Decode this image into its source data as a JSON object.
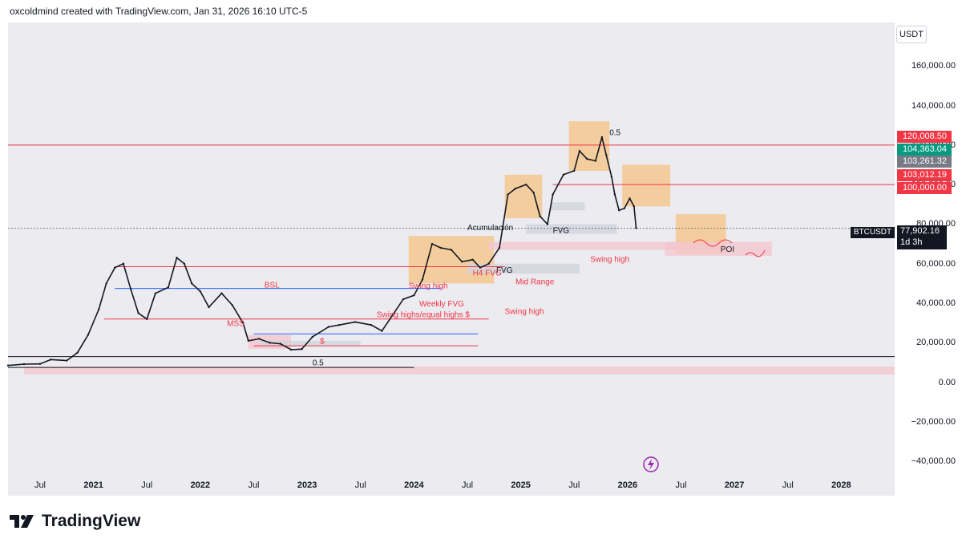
{
  "header": {
    "credit": "oxcoldmind created with TradingView.com, Jan 31, 2026 16:10 UTC-5"
  },
  "footer": {
    "brand": "TradingView"
  },
  "symbol": {
    "name": "BTCUSDT",
    "last_price": "77,902.16",
    "countdown": "1d 3h",
    "currency": "USDT"
  },
  "price_tags": [
    {
      "label": "120,008.50",
      "color": "#f23645"
    },
    {
      "label": "104,363.04",
      "color": "#089981"
    },
    {
      "label": "103,261.32",
      "color": "#787b86"
    },
    {
      "label": "103,012.19",
      "color": "#f23645"
    },
    {
      "label": "100,000.00",
      "color": "#f23645"
    }
  ],
  "chart_data": {
    "type": "line",
    "title": "BTCUSDT 1D",
    "ylim": [
      -48000,
      182000
    ],
    "xlim": [
      2020.2,
      2028.5
    ],
    "y_ticks": [
      160000,
      140000,
      120000,
      100000,
      80000,
      60000,
      40000,
      20000,
      0,
      -20000,
      -40000
    ],
    "y_tick_labels": [
      "160,000.00",
      "140,000.00",
      "120,000.00",
      "100,000.00",
      "80,000.00",
      "60,000.00",
      "40,000.00",
      "20,000.00",
      "0.00",
      "−20,000.00",
      "−40,000.00"
    ],
    "x_ticks": [
      {
        "label": "Jul",
        "t": 2020.5,
        "year": false
      },
      {
        "label": "2021",
        "t": 2021.0,
        "year": true
      },
      {
        "label": "Jul",
        "t": 2021.5,
        "year": false
      },
      {
        "label": "2022",
        "t": 2022.0,
        "year": true
      },
      {
        "label": "Jul",
        "t": 2022.5,
        "year": false
      },
      {
        "label": "2023",
        "t": 2023.0,
        "year": true
      },
      {
        "label": "Jul",
        "t": 2023.5,
        "year": false
      },
      {
        "label": "2024",
        "t": 2024.0,
        "year": true
      },
      {
        "label": "Jul",
        "t": 2024.5,
        "year": false
      },
      {
        "label": "2025",
        "t": 2025.0,
        "year": true
      },
      {
        "label": "Jul",
        "t": 2025.5,
        "year": false
      },
      {
        "label": "2026",
        "t": 2026.0,
        "year": true
      },
      {
        "label": "Jul",
        "t": 2026.5,
        "year": false
      },
      {
        "label": "2027",
        "t": 2027.0,
        "year": true
      },
      {
        "label": "Jul",
        "t": 2027.5,
        "year": false
      },
      {
        "label": "2028",
        "t": 2028.0,
        "year": true
      }
    ],
    "series": [
      {
        "name": "BTCUSDT price",
        "color": "#131722",
        "points": [
          [
            2020.2,
            8500
          ],
          [
            2020.35,
            9200
          ],
          [
            2020.5,
            9300
          ],
          [
            2020.6,
            11500
          ],
          [
            2020.75,
            11000
          ],
          [
            2020.85,
            15000
          ],
          [
            2020.95,
            24000
          ],
          [
            2021.05,
            37000
          ],
          [
            2021.12,
            50000
          ],
          [
            2021.2,
            58000
          ],
          [
            2021.28,
            60000
          ],
          [
            2021.35,
            47000
          ],
          [
            2021.42,
            35000
          ],
          [
            2021.5,
            32000
          ],
          [
            2021.58,
            45000
          ],
          [
            2021.7,
            48000
          ],
          [
            2021.78,
            63000
          ],
          [
            2021.85,
            60000
          ],
          [
            2021.92,
            50000
          ],
          [
            2022.0,
            46000
          ],
          [
            2022.08,
            38000
          ],
          [
            2022.2,
            45000
          ],
          [
            2022.3,
            39000
          ],
          [
            2022.4,
            30000
          ],
          [
            2022.45,
            21000
          ],
          [
            2022.55,
            22000
          ],
          [
            2022.65,
            20000
          ],
          [
            2022.75,
            19500
          ],
          [
            2022.85,
            16500
          ],
          [
            2022.95,
            16800
          ],
          [
            2023.05,
            23000
          ],
          [
            2023.2,
            28000
          ],
          [
            2023.3,
            29000
          ],
          [
            2023.45,
            30500
          ],
          [
            2023.6,
            29000
          ],
          [
            2023.7,
            26000
          ],
          [
            2023.8,
            34000
          ],
          [
            2023.9,
            42000
          ],
          [
            2024.0,
            44000
          ],
          [
            2024.08,
            52000
          ],
          [
            2024.17,
            70000
          ],
          [
            2024.25,
            68000
          ],
          [
            2024.35,
            67000
          ],
          [
            2024.45,
            61000
          ],
          [
            2024.55,
            62000
          ],
          [
            2024.62,
            58000
          ],
          [
            2024.7,
            60000
          ],
          [
            2024.8,
            68000
          ],
          [
            2024.88,
            95000
          ],
          [
            2024.95,
            98000
          ],
          [
            2025.05,
            100000
          ],
          [
            2025.12,
            96000
          ],
          [
            2025.18,
            84000
          ],
          [
            2025.25,
            80000
          ],
          [
            2025.3,
            95000
          ],
          [
            2025.4,
            105000
          ],
          [
            2025.5,
            107000
          ],
          [
            2025.55,
            117000
          ],
          [
            2025.62,
            113000
          ],
          [
            2025.7,
            112000
          ],
          [
            2025.76,
            124000
          ],
          [
            2025.8,
            115000
          ],
          [
            2025.85,
            104000
          ],
          [
            2025.88,
            95000
          ],
          [
            2025.92,
            87000
          ],
          [
            2025.97,
            88000
          ],
          [
            2026.02,
            93000
          ],
          [
            2026.06,
            89000
          ],
          [
            2026.08,
            78000
          ]
        ]
      }
    ],
    "horizontal_levels": [
      {
        "value": 120008.5,
        "color": "#f23645",
        "from": 2020.2,
        "to": 2028.5
      },
      {
        "value": 100000,
        "color": "#f23645",
        "from": 2025.3,
        "to": 2028.5
      },
      {
        "value": 77902.16,
        "color": "#787b86",
        "dashed": true,
        "from": 2020.2,
        "to": 2028.5
      },
      {
        "value": 58500,
        "color": "#f23645",
        "from": 2021.2,
        "to": 2024.85
      },
      {
        "value": 47500,
        "color": "#2962ff",
        "from": 2021.2,
        "to": 2024.25
      },
      {
        "value": 32000,
        "color": "#f23645",
        "from": 2021.1,
        "to": 2024.7
      },
      {
        "value": 24500,
        "color": "#2962ff",
        "from": 2022.5,
        "to": 2024.6
      },
      {
        "value": 18500,
        "color": "#f23645",
        "from": 2022.5,
        "to": 2024.6
      },
      {
        "value": 13000,
        "color": "#131722",
        "from": 2020.2,
        "to": 2028.5
      },
      {
        "value": 7500,
        "color": "#131722",
        "from": 2020.2,
        "to": 2024.0
      }
    ],
    "zones": [
      {
        "t0": 2025.45,
        "t1": 2025.83,
        "v0": 107000,
        "v1": 132000,
        "color": "#f5c58a"
      },
      {
        "t0": 2024.85,
        "t1": 2025.2,
        "v0": 83000,
        "v1": 105000,
        "color": "#f5c58a"
      },
      {
        "t0": 2025.95,
        "t1": 2026.4,
        "v0": 89000,
        "v1": 110000,
        "color": "#f5c58a"
      },
      {
        "t0": 2026.45,
        "t1": 2026.92,
        "v0": 65000,
        "v1": 85000,
        "color": "#f5c58a"
      },
      {
        "t0": 2023.95,
        "t1": 2024.75,
        "v0": 50000,
        "v1": 74000,
        "color": "#f5c58a"
      },
      {
        "t0": 2026.35,
        "t1": 2027.35,
        "v0": 64000,
        "v1": 71000,
        "color": "#f4c7cf"
      },
      {
        "t0": 2020.35,
        "t1": 2028.5,
        "v0": 4000,
        "v1": 8000,
        "color": "#f4c7cf"
      },
      {
        "t0": 2024.7,
        "t1": 2026.5,
        "v0": 67000,
        "v1": 71000,
        "color": "#f4c7cf"
      },
      {
        "t0": 2025.05,
        "t1": 2025.9,
        "v0": 75000,
        "v1": 80000,
        "color": "#d1d4dc"
      },
      {
        "t0": 2025.28,
        "t1": 2025.6,
        "v0": 87000,
        "v1": 91000,
        "color": "#d1d4dc"
      },
      {
        "t0": 2024.5,
        "t1": 2025.55,
        "v0": 55000,
        "v1": 60000,
        "color": "#d1d4dc"
      },
      {
        "t0": 2022.45,
        "t1": 2022.85,
        "v0": 17000,
        "v1": 24000,
        "color": "#f4c7cf"
      },
      {
        "t0": 2022.55,
        "t1": 2023.5,
        "v0": 18500,
        "v1": 21000,
        "color": "#d1d4dc"
      }
    ],
    "annotations": [
      {
        "text": "0.5",
        "t": 2025.83,
        "v": 125000,
        "color": "#131722"
      },
      {
        "text": "0.5",
        "t": 2023.05,
        "v": 8500,
        "color": "#131722"
      },
      {
        "text": "Acumulación",
        "t": 2024.5,
        "v": 77000,
        "color": "#131722"
      },
      {
        "text": "FVG",
        "t": 2025.3,
        "v": 75500,
        "color": "#131722"
      },
      {
        "text": "FVG",
        "t": 2024.77,
        "v": 55500,
        "color": "#131722"
      },
      {
        "text": "H4 FVG",
        "t": 2024.55,
        "v": 54000,
        "color": "#f23645"
      },
      {
        "text": "Swing high",
        "t": 2025.65,
        "v": 61000,
        "color": "#f23645"
      },
      {
        "text": "Mid Range",
        "t": 2024.95,
        "v": 49500,
        "color": "#f23645"
      },
      {
        "text": "Swing high",
        "t": 2024.85,
        "v": 34500,
        "color": "#f23645"
      },
      {
        "text": "BSL",
        "t": 2022.6,
        "v": 48000,
        "color": "#f23645"
      },
      {
        "text": "Swing high",
        "t": 2023.95,
        "v": 47500,
        "color": "#f23645"
      },
      {
        "text": "Weekly FVG",
        "t": 2024.05,
        "v": 38500,
        "color": "#f23645"
      },
      {
        "text": "Swing highs/equal highs $",
        "t": 2023.65,
        "v": 33000,
        "color": "#f23645"
      },
      {
        "text": "MSS",
        "t": 2022.25,
        "v": 28500,
        "color": "#f23645"
      },
      {
        "text": "$",
        "t": 2023.12,
        "v": 19500,
        "color": "#f23645"
      },
      {
        "text": "POI",
        "t": 2026.87,
        "v": 66000,
        "color": "#131722"
      }
    ]
  }
}
